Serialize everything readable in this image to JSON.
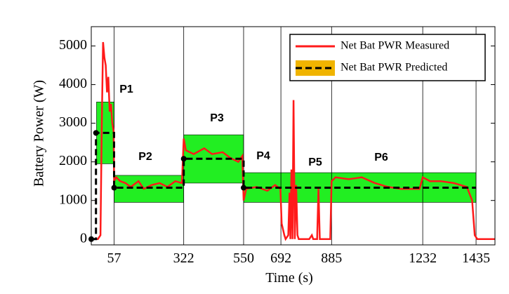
{
  "chart_data": {
    "type": "line",
    "xlabel": "Time (s)",
    "ylabel": "Battery Power (W)",
    "xlim": [
      -30,
      1507
    ],
    "ylim": [
      -150,
      5500
    ],
    "xticks": [
      57,
      322,
      550,
      692,
      885,
      1232,
      1435
    ],
    "yticks": [
      0,
      1000,
      2000,
      3000,
      4000,
      5000
    ],
    "grid": "x",
    "legend": "upper right",
    "bands": [
      {
        "x": [
          -10,
          57
        ],
        "y": [
          1950,
          3550
        ]
      },
      {
        "x": [
          57,
          322
        ],
        "y": [
          950,
          1650
        ]
      },
      {
        "x": [
          322,
          550
        ],
        "y": [
          1450,
          2700
        ]
      },
      {
        "x": [
          550,
          1435
        ],
        "y": [
          950,
          1720
        ]
      }
    ],
    "band_color": "#22ee22",
    "annotations": [
      "P1",
      "P2",
      "P3",
      "P4",
      "P5",
      "P6"
    ],
    "series": [
      {
        "name": "Net Bat PWR Measured",
        "color": "#ff1a1a",
        "style": "solid",
        "x": [
          -30,
          -5,
          5,
          10,
          15,
          20,
          25,
          30,
          35,
          40,
          45,
          50,
          55,
          57,
          65,
          80,
          100,
          120,
          150,
          170,
          200,
          230,
          260,
          290,
          315,
          322,
          330,
          360,
          400,
          430,
          470,
          500,
          530,
          545,
          550,
          560,
          600,
          640,
          670,
          690,
          695,
          705,
          710,
          720,
          725,
          728,
          732,
          736,
          740,
          745,
          750,
          755,
          760,
          800,
          810,
          815,
          830,
          835,
          840,
          880,
          885,
          900,
          950,
          1000,
          1050,
          1100,
          1150,
          1200,
          1220,
          1232,
          1260,
          1300,
          1350,
          1400,
          1420,
          1430,
          1440,
          1507
        ],
        "values": [
          0,
          0,
          100,
          3000,
          5100,
          4700,
          4500,
          3800,
          4200,
          3300,
          3500,
          3000,
          2800,
          1500,
          1600,
          1500,
          1450,
          1350,
          1500,
          1300,
          1400,
          1450,
          1350,
          1500,
          1450,
          2600,
          2300,
          2200,
          2350,
          2200,
          2250,
          2100,
          2000,
          2150,
          1000,
          1300,
          1350,
          1250,
          1400,
          1300,
          400,
          100,
          0,
          100,
          1200,
          0,
          1800,
          0,
          3600,
          0,
          1400,
          100,
          0,
          0,
          100,
          0,
          0,
          1300,
          0,
          0,
          1500,
          1600,
          1550,
          1600,
          1450,
          1350,
          1300,
          1300,
          1300,
          1600,
          1500,
          1500,
          1450,
          1350,
          1000,
          100,
          0,
          0
        ]
      },
      {
        "name": "Net Bat PWR Predicted",
        "color": "#000000",
        "style": "dashed",
        "legend_fill": "#f0b400",
        "x": [
          -30,
          -12,
          -12,
          57,
          57,
          322,
          322,
          550,
          550,
          1435
        ],
        "values": [
          0,
          0,
          2750,
          2750,
          1330,
          1330,
          2080,
          2080,
          1330,
          1330
        ]
      }
    ]
  }
}
